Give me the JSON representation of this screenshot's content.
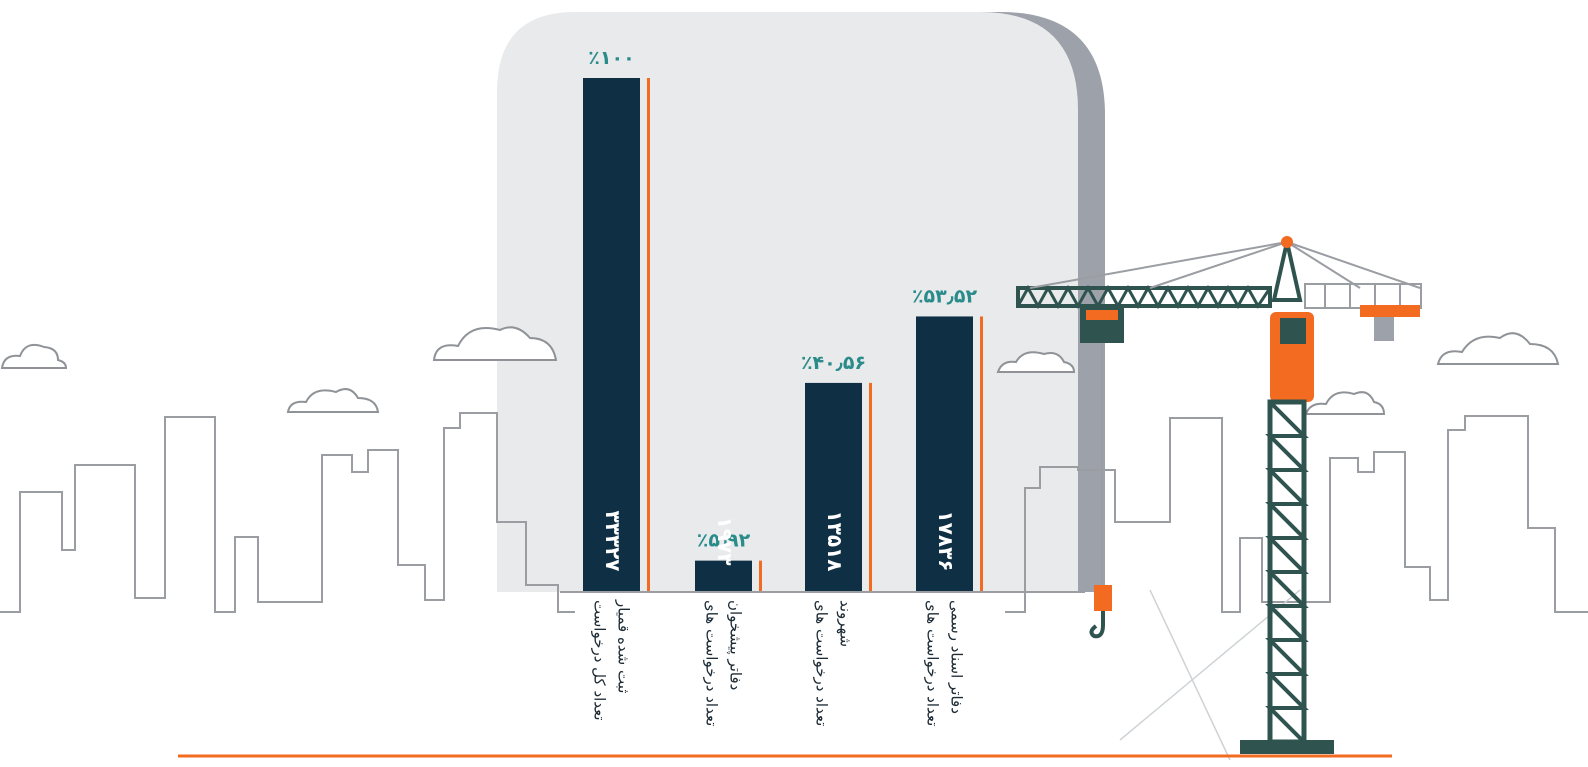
{
  "chart_data": {
    "type": "bar",
    "categories": [
      "تعداد کل درخواست ثبت شده قمیار",
      "تعداد درخواست های دفاتر پیشخوان",
      "تعداد درخواست های شهروند",
      "تعداد درخواست های دفاتر اسناد رسمی"
    ],
    "category_lines": [
      [
        "تعداد کل درخواست",
        "ثبت شده قمیار"
      ],
      [
        "تعداد درخواست های",
        "دفاتر پیشخوان"
      ],
      [
        "تعداد درخواست های",
        "شهروند"
      ],
      [
        "تعداد درخواست های",
        "دفاتر اسناد رسمی"
      ]
    ],
    "values": [
      33327,
      1973,
      13518,
      17836
    ],
    "value_labels": [
      "۳۳۳۲۷",
      "۱۹۷۳",
      "۱۳۵۱۸",
      "۱۷۸۳۶"
    ],
    "percent_values": [
      100,
      5.92,
      40.56,
      53.52
    ],
    "percent_labels": [
      "٪۱۰۰",
      "٪۵٫۹۲",
      "٪۴۰٫۵۶",
      "٪۵۳٫۵۲"
    ],
    "ylim": [
      0,
      33327
    ],
    "grid": false,
    "colors": {
      "bar": "#0f2f44",
      "accent": "#f26b21",
      "percent_text": "#2a8b8b",
      "panel": "#e9eaeb",
      "panel_shadow": "#9da1aa",
      "skyline": "#9a9ea3",
      "crane": "#2f5450",
      "ground": "#f26b21"
    }
  }
}
